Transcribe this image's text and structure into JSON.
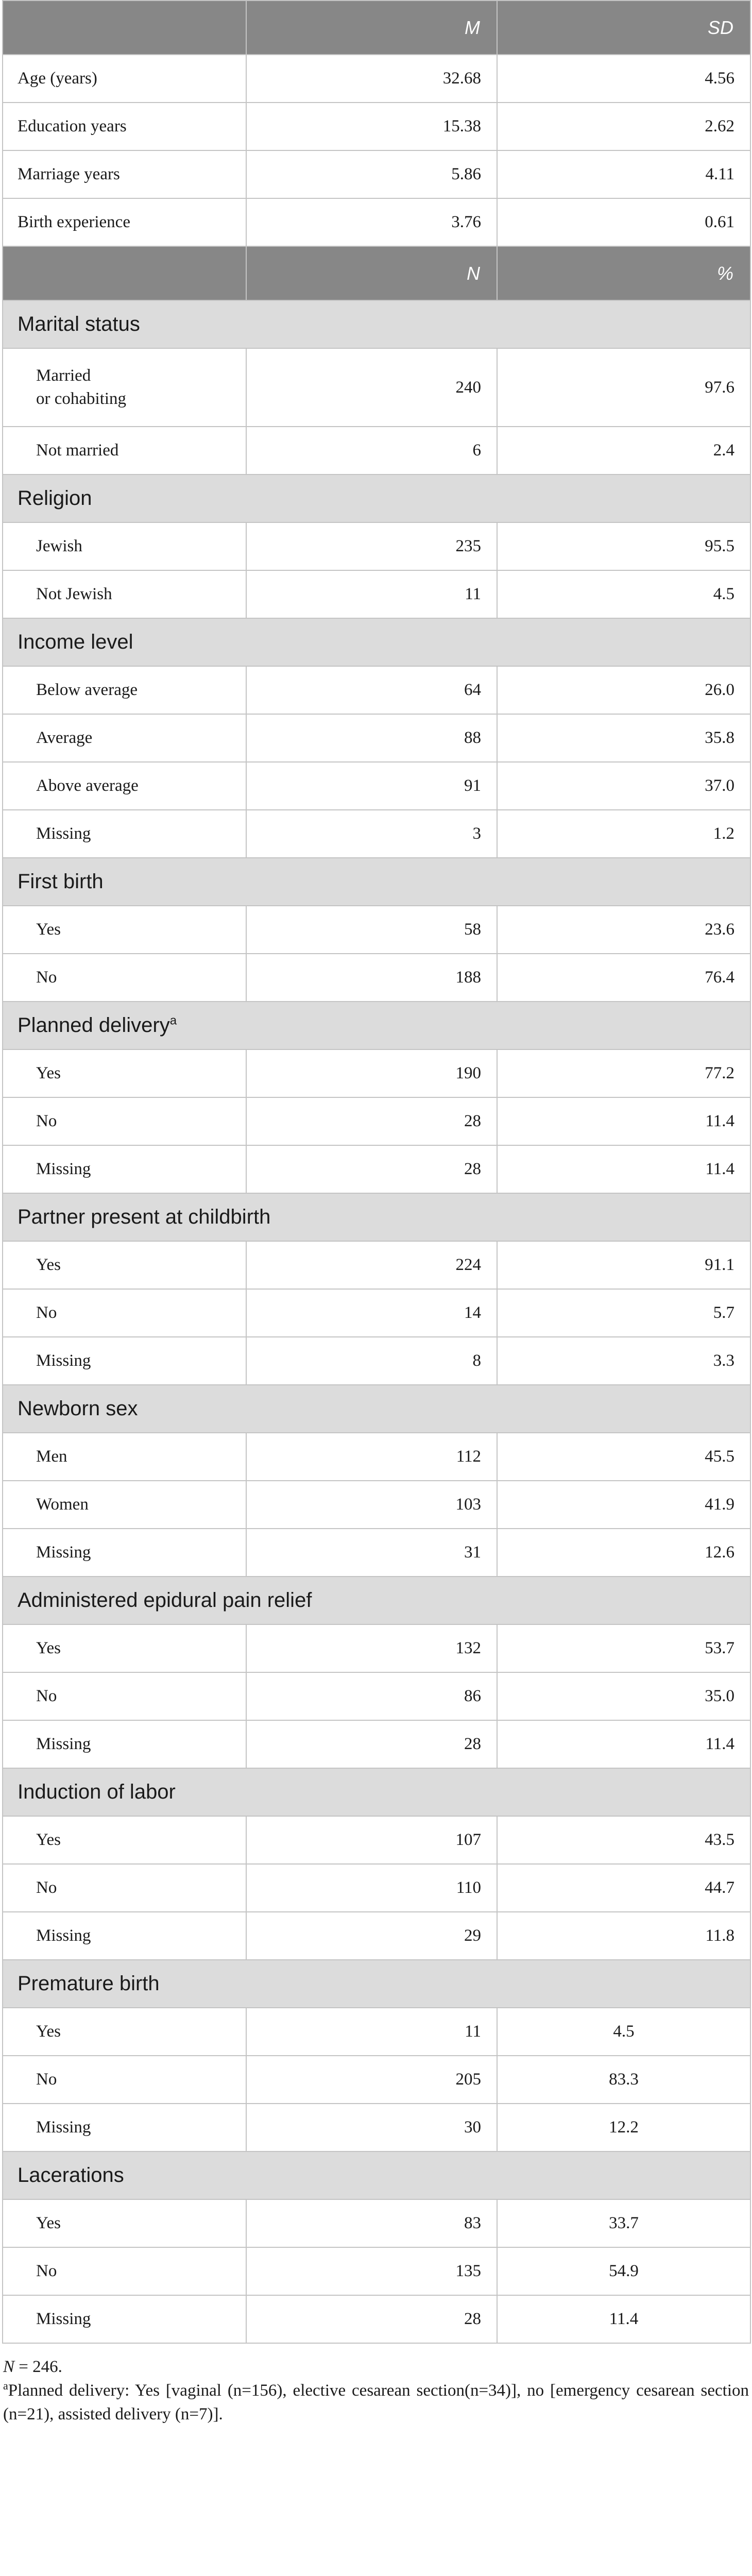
{
  "header_cont": {
    "col2": "M",
    "col3": "SD"
  },
  "continuous": [
    {
      "label": "Age (years)",
      "m": "32.68",
      "sd": "4.56"
    },
    {
      "label": "Education years",
      "m": "15.38",
      "sd": "2.62"
    },
    {
      "label": "Marriage years",
      "m": "5.86",
      "sd": "4.11"
    },
    {
      "label": "Birth experience",
      "m": "3.76",
      "sd": "0.61"
    }
  ],
  "header_cat": {
    "col2": "N",
    "col3": "%"
  },
  "categories": [
    {
      "title": "Marital status",
      "sup": "",
      "rows": [
        {
          "label": "Married\nor cohabiting",
          "n": "240",
          "pct": "97.6"
        },
        {
          "label": "Not married",
          "n": "6",
          "pct": "2.4"
        }
      ]
    },
    {
      "title": "Religion",
      "sup": "",
      "rows": [
        {
          "label": "Jewish",
          "n": "235",
          "pct": "95.5"
        },
        {
          "label": "Not Jewish",
          "n": "11",
          "pct": "4.5"
        }
      ]
    },
    {
      "title": "Income level",
      "sup": "",
      "rows": [
        {
          "label": "Below average",
          "n": "64",
          "pct": "26.0"
        },
        {
          "label": "Average",
          "n": "88",
          "pct": "35.8"
        },
        {
          "label": "Above average",
          "n": "91",
          "pct": "37.0"
        },
        {
          "label": "Missing",
          "n": "3",
          "pct": "1.2"
        }
      ]
    },
    {
      "title": "First birth",
      "sup": "",
      "rows": [
        {
          "label": "Yes",
          "n": "58",
          "pct": "23.6"
        },
        {
          "label": "No",
          "n": "188",
          "pct": "76.4"
        }
      ]
    },
    {
      "title": "Planned delivery",
      "sup": "a",
      "rows": [
        {
          "label": "Yes",
          "n": "190",
          "pct": "77.2"
        },
        {
          "label": "No",
          "n": "28",
          "pct": "11.4"
        },
        {
          "label": "Missing",
          "n": "28",
          "pct": "11.4"
        }
      ]
    },
    {
      "title": "Partner present at childbirth",
      "sup": "",
      "rows": [
        {
          "label": "Yes",
          "n": "224",
          "pct": "91.1"
        },
        {
          "label": "No",
          "n": "14",
          "pct": "5.7"
        },
        {
          "label": "Missing",
          "n": "8",
          "pct": "3.3"
        }
      ]
    },
    {
      "title": "Newborn sex",
      "sup": "",
      "rows": [
        {
          "label": "Men",
          "n": "112",
          "pct": "45.5"
        },
        {
          "label": "Women",
          "n": "103",
          "pct": "41.9"
        },
        {
          "label": "Missing",
          "n": "31",
          "pct": "12.6"
        }
      ]
    },
    {
      "title": "Administered epidural pain relief",
      "sup": "",
      "rows": [
        {
          "label": "Yes",
          "n": "132",
          "pct": "53.7"
        },
        {
          "label": "No",
          "n": "86",
          "pct": "35.0"
        },
        {
          "label": "Missing",
          "n": "28",
          "pct": "11.4"
        }
      ]
    },
    {
      "title": "Induction of labor",
      "sup": "",
      "rows": [
        {
          "label": "Yes",
          "n": "107",
          "pct": "43.5"
        },
        {
          "label": "No",
          "n": "110",
          "pct": "44.7"
        },
        {
          "label": "Missing",
          "n": "29",
          "pct": "11.8"
        }
      ]
    },
    {
      "title": "Premature birth",
      "sup": "",
      "center": true,
      "rows": [
        {
          "label": "Yes",
          "n": "11",
          "pct": "4.5"
        },
        {
          "label": "No",
          "n": "205",
          "pct": "83.3"
        },
        {
          "label": "Missing",
          "n": "30",
          "pct": "12.2"
        }
      ]
    },
    {
      "title": "Lacerations",
      "sup": "",
      "center": true,
      "rows": [
        {
          "label": "Yes",
          "n": "83",
          "pct": "33.7"
        },
        {
          "label": "No",
          "n": "135",
          "pct": "54.9"
        },
        {
          "label": "Missing",
          "n": "28",
          "pct": "11.4"
        }
      ]
    }
  ],
  "notes": {
    "n_label": "N",
    "n_value": " = 246.",
    "footnote_mark": "a",
    "footnote_text": "Planned delivery: Yes [vaginal (n=156), elective cesarean section(n=34)], no [emergency cesarean section (n=21), assisted delivery (n=7)]."
  }
}
